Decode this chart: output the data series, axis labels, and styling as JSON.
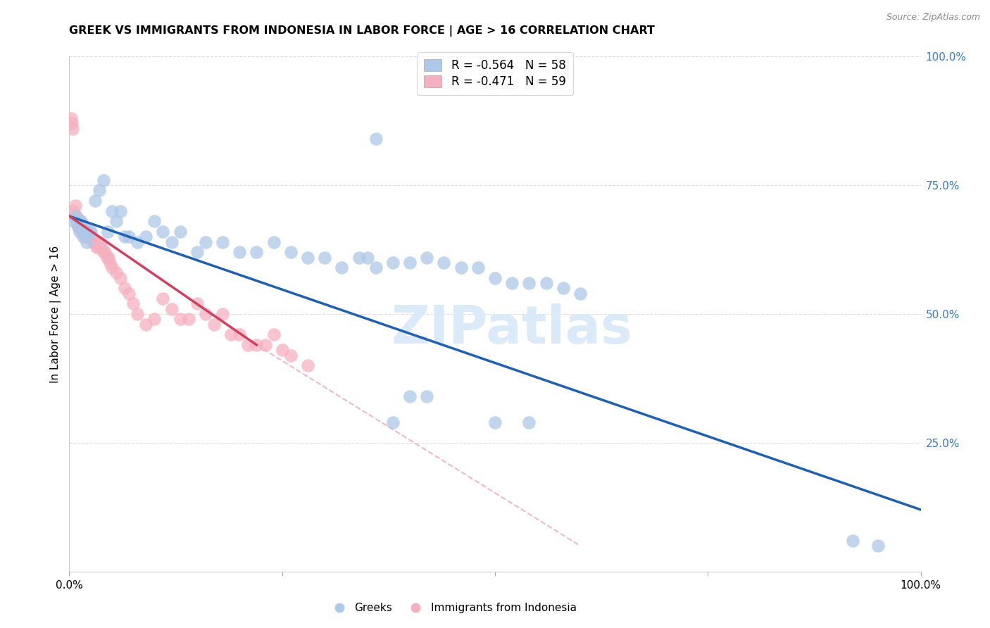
{
  "title": "GREEK VS IMMIGRANTS FROM INDONESIA IN LABOR FORCE | AGE > 16 CORRELATION CHART",
  "source": "Source: ZipAtlas.com",
  "ylabel": "In Labor Force | Age > 16",
  "right_yticks": [
    "100.0%",
    "75.0%",
    "50.0%",
    "25.0%"
  ],
  "right_ytick_vals": [
    1.0,
    0.75,
    0.5,
    0.25
  ],
  "xlim": [
    0.0,
    1.0
  ],
  "ylim": [
    0.0,
    1.0
  ],
  "legend_entries": [
    {
      "label": "R = -0.564   N = 58",
      "color": "#adc8e8"
    },
    {
      "label": "R = -0.471   N = 59",
      "color": "#f5b0c0"
    }
  ],
  "legend_label_greeks": "Greeks",
  "legend_label_immigrants": "Immigrants from Indonesia",
  "blue_scatter_color": "#adc8e8",
  "pink_scatter_color": "#f5b0c0",
  "blue_line_color": "#2060b0",
  "pink_line_color": "#d04060",
  "dashed_line_color": "#f0b8c8",
  "watermark_text": "ZIPatlas",
  "watermark_color": "#daeaf8",
  "blue_dots_x": [
    0.005,
    0.008,
    0.01,
    0.012,
    0.014,
    0.016,
    0.018,
    0.02,
    0.022,
    0.025,
    0.03,
    0.035,
    0.04,
    0.045,
    0.05,
    0.055,
    0.06,
    0.065,
    0.07,
    0.08,
    0.09,
    0.1,
    0.11,
    0.12,
    0.13,
    0.15,
    0.16,
    0.18,
    0.2,
    0.22,
    0.24,
    0.26,
    0.28,
    0.3,
    0.32,
    0.34,
    0.35,
    0.36,
    0.38,
    0.4,
    0.42,
    0.44,
    0.46,
    0.48,
    0.5,
    0.52,
    0.54,
    0.56,
    0.58,
    0.6,
    0.38,
    0.42,
    0.5,
    0.54,
    0.92,
    0.95,
    0.36,
    0.4
  ],
  "blue_dots_y": [
    0.68,
    0.69,
    0.67,
    0.66,
    0.68,
    0.65,
    0.67,
    0.64,
    0.66,
    0.66,
    0.72,
    0.74,
    0.76,
    0.66,
    0.7,
    0.68,
    0.7,
    0.65,
    0.65,
    0.64,
    0.65,
    0.68,
    0.66,
    0.64,
    0.66,
    0.62,
    0.64,
    0.64,
    0.62,
    0.62,
    0.64,
    0.62,
    0.61,
    0.61,
    0.59,
    0.61,
    0.61,
    0.59,
    0.6,
    0.6,
    0.61,
    0.6,
    0.59,
    0.59,
    0.57,
    0.56,
    0.56,
    0.56,
    0.55,
    0.54,
    0.29,
    0.34,
    0.29,
    0.29,
    0.06,
    0.05,
    0.84,
    0.34
  ],
  "pink_dots_x": [
    0.002,
    0.003,
    0.004,
    0.005,
    0.006,
    0.007,
    0.008,
    0.009,
    0.01,
    0.011,
    0.012,
    0.013,
    0.014,
    0.015,
    0.016,
    0.017,
    0.018,
    0.019,
    0.02,
    0.022,
    0.024,
    0.026,
    0.028,
    0.03,
    0.032,
    0.034,
    0.036,
    0.038,
    0.04,
    0.042,
    0.044,
    0.046,
    0.048,
    0.05,
    0.055,
    0.06,
    0.065,
    0.07,
    0.075,
    0.08,
    0.09,
    0.1,
    0.11,
    0.12,
    0.13,
    0.14,
    0.15,
    0.16,
    0.17,
    0.18,
    0.19,
    0.2,
    0.21,
    0.22,
    0.23,
    0.24,
    0.25,
    0.26,
    0.28
  ],
  "pink_dots_y": [
    0.88,
    0.87,
    0.86,
    0.7,
    0.69,
    0.71,
    0.69,
    0.68,
    0.67,
    0.68,
    0.68,
    0.67,
    0.67,
    0.66,
    0.66,
    0.66,
    0.66,
    0.65,
    0.66,
    0.65,
    0.66,
    0.65,
    0.64,
    0.64,
    0.63,
    0.63,
    0.64,
    0.63,
    0.62,
    0.62,
    0.61,
    0.61,
    0.6,
    0.59,
    0.58,
    0.57,
    0.55,
    0.54,
    0.52,
    0.5,
    0.48,
    0.49,
    0.53,
    0.51,
    0.49,
    0.49,
    0.52,
    0.5,
    0.48,
    0.5,
    0.46,
    0.46,
    0.44,
    0.44,
    0.44,
    0.46,
    0.43,
    0.42,
    0.4
  ],
  "blue_line_x": [
    0.0,
    1.0
  ],
  "blue_line_y": [
    0.69,
    0.12
  ],
  "pink_line_x": [
    0.0,
    0.22
  ],
  "pink_line_y": [
    0.69,
    0.44
  ],
  "dashed_line_x": [
    0.22,
    0.6
  ],
  "dashed_line_y": [
    0.44,
    0.05
  ]
}
